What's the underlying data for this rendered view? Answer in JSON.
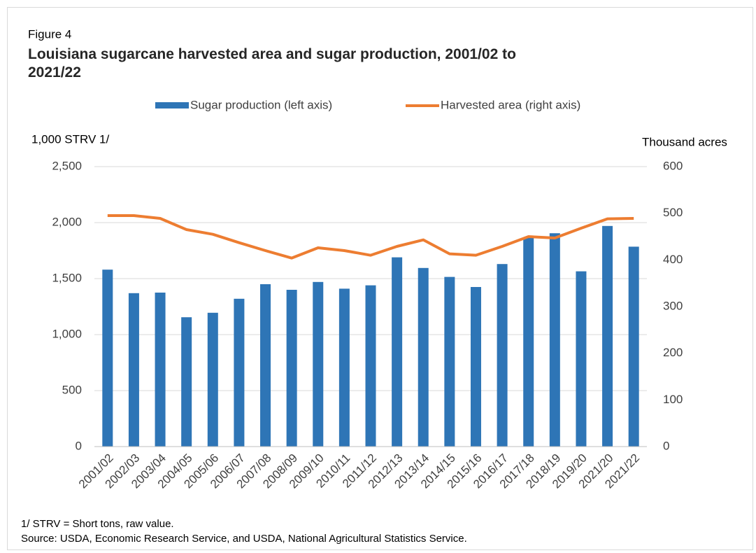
{
  "chart_data": {
    "type": "combo",
    "label": "Figure 4",
    "title": "Louisiana sugarcane harvested area and sugar production, 2001/02 to 2021/22",
    "y_label": "1,000 STRV 1/",
    "y2_label": "Thousand acres",
    "categories": [
      "2001/02",
      "2002/03",
      "2003/04",
      "2004/05",
      "2005/06",
      "2006/07",
      "2007/08",
      "2008/09",
      "2009/10",
      "2010/11",
      "2011/12",
      "2012/13",
      "2013/14",
      "2014/15",
      "2015/16",
      "2016/17",
      "2017/18",
      "2018/19",
      "2019/20",
      "2021/20",
      "2021/22"
    ],
    "series": [
      {
        "name": "Sugar production (left axis)",
        "type": "bar",
        "color": "#2e75b6",
        "values": [
          1580,
          1370,
          1375,
          1155,
          1195,
          1320,
          1450,
          1400,
          1470,
          1410,
          1440,
          1690,
          1595,
          1515,
          1425,
          1630,
          1865,
          1905,
          1565,
          1970,
          1785
        ]
      },
      {
        "name": "Harvested area (right axis)",
        "type": "line",
        "axis": "y2",
        "color": "#ed7d31",
        "values": [
          495,
          495,
          489,
          465,
          455,
          437,
          420,
          404,
          426,
          420,
          410,
          429,
          443,
          413,
          410,
          429,
          450,
          447,
          468,
          488,
          489
        ]
      }
    ],
    "ylim": [
      0,
      2500
    ],
    "yticks": [
      0,
      {
        "value": 500,
        "label": "500"
      },
      {
        "value": 1000,
        "label": "1,000"
      },
      {
        "value": 1500,
        "label": "1,500"
      },
      {
        "value": 2000,
        "label": "2,000"
      },
      {
        "value": 2500,
        "label": "2,500"
      }
    ],
    "y2lim": [
      0,
      600
    ],
    "y2ticks": [
      0,
      100,
      200,
      300,
      400,
      500,
      600
    ],
    "grid": true,
    "notes": [
      "1/ STRV = Short tons, raw value.",
      "Source: USDA, Economic Research Service, and USDA, National Agricultural Statistics Service."
    ]
  }
}
